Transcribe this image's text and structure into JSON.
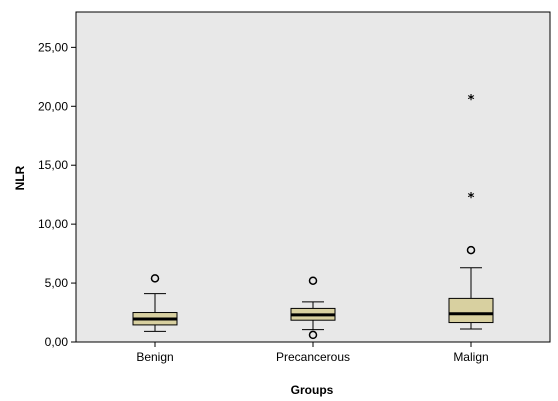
{
  "chart_data": {
    "type": "boxplot",
    "xlabel": "Groups",
    "ylabel": "NLR",
    "ylim": [
      0,
      28
    ],
    "yticks": [
      0,
      5,
      10,
      15,
      20,
      25
    ],
    "ytick_labels": [
      "0,00",
      "5,00",
      "10,00",
      "15,00",
      "20,00",
      "25,00"
    ],
    "grid": false,
    "plot_background": "#e8e8e8",
    "box_color": "#d8d0a0",
    "categories": [
      "Benign",
      "Precancerous",
      "Malign"
    ],
    "boxes": [
      {
        "category": "Benign",
        "whisker_low": 0.9,
        "q1": 1.45,
        "median": 1.95,
        "q3": 2.5,
        "whisker_high": 4.1,
        "outliers": [
          5.4
        ],
        "extremes": []
      },
      {
        "category": "Precancerous",
        "whisker_low": 1.05,
        "q1": 1.85,
        "median": 2.3,
        "q3": 2.85,
        "whisker_high": 3.4,
        "outliers": [
          5.2,
          0.6
        ],
        "extremes": []
      },
      {
        "category": "Malign",
        "whisker_low": 1.1,
        "q1": 1.65,
        "median": 2.4,
        "q3": 3.7,
        "whisker_high": 6.3,
        "outliers": [
          7.8
        ],
        "extremes": [
          12.3,
          20.6
        ]
      }
    ]
  }
}
